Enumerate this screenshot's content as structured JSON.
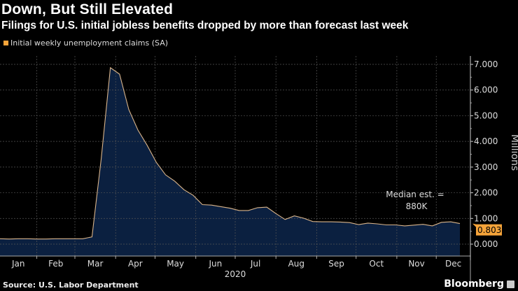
{
  "header": {
    "title": "Down, But Still Elevated",
    "subtitle": "Filings for U.S. initial jobless benefits dropped by more than forecast last week"
  },
  "footer": {
    "source": "Source: U.S. Labor Department",
    "brand": "Bloomberg"
  },
  "chart_data": {
    "type": "area",
    "legend": [
      {
        "name": "Initial weekly unemployment claims (SA)",
        "color": "#f6a43a"
      }
    ],
    "legend_placement": "top-left",
    "ylabel": "Millions",
    "y_axis_side": "right",
    "ylim": [
      -0.45,
      7.3
    ],
    "yticks": [
      "0.000",
      "1.000",
      "2.000",
      "3.000",
      "4.000",
      "5.000",
      "6.000",
      "7.000"
    ],
    "xlabel": "2020",
    "xticks": [
      "Jan",
      "Feb",
      "Mar",
      "Apr",
      "May",
      "Jun",
      "Jul",
      "Aug",
      "Sep",
      "Oct",
      "Nov",
      "Dec"
    ],
    "xlim": [
      "2020-01-04",
      "2020-12-31"
    ],
    "grid": true,
    "fill_color": "#0b2040",
    "line_color": "#d9b48a",
    "last_value_label": "0.803",
    "last_value_color": "#f6a43a",
    "annotation": {
      "line1": "Median est. =",
      "line2": "880K"
    },
    "series": [
      {
        "name": "Initial weekly unemployment claims (SA)",
        "x": [
          "2020-01-04",
          "2020-01-11",
          "2020-01-18",
          "2020-01-25",
          "2020-02-01",
          "2020-02-08",
          "2020-02-15",
          "2020-02-22",
          "2020-02-29",
          "2020-03-07",
          "2020-03-14",
          "2020-03-21",
          "2020-03-28",
          "2020-04-04",
          "2020-04-11",
          "2020-04-18",
          "2020-04-25",
          "2020-05-02",
          "2020-05-09",
          "2020-05-16",
          "2020-05-23",
          "2020-05-30",
          "2020-06-06",
          "2020-06-13",
          "2020-06-20",
          "2020-06-27",
          "2020-07-04",
          "2020-07-11",
          "2020-07-18",
          "2020-07-25",
          "2020-08-01",
          "2020-08-08",
          "2020-08-15",
          "2020-08-22",
          "2020-08-29",
          "2020-09-05",
          "2020-09-12",
          "2020-09-19",
          "2020-09-26",
          "2020-10-03",
          "2020-10-10",
          "2020-10-17",
          "2020-10-24",
          "2020-10-31",
          "2020-11-07",
          "2020-11-14",
          "2020-11-21",
          "2020-11-28",
          "2020-12-05",
          "2020-12-12",
          "2020-12-19"
        ],
        "values": [
          0.21,
          0.2,
          0.21,
          0.21,
          0.2,
          0.2,
          0.21,
          0.21,
          0.21,
          0.21,
          0.28,
          3.3,
          6.87,
          6.62,
          5.24,
          4.44,
          3.85,
          3.18,
          2.7,
          2.45,
          2.12,
          1.9,
          1.54,
          1.52,
          1.46,
          1.4,
          1.31,
          1.31,
          1.42,
          1.44,
          1.19,
          0.96,
          1.1,
          1.01,
          0.88,
          0.87,
          0.87,
          0.86,
          0.84,
          0.76,
          0.82,
          0.79,
          0.75,
          0.75,
          0.71,
          0.74,
          0.77,
          0.71,
          0.85,
          0.87,
          0.8
        ]
      }
    ]
  }
}
